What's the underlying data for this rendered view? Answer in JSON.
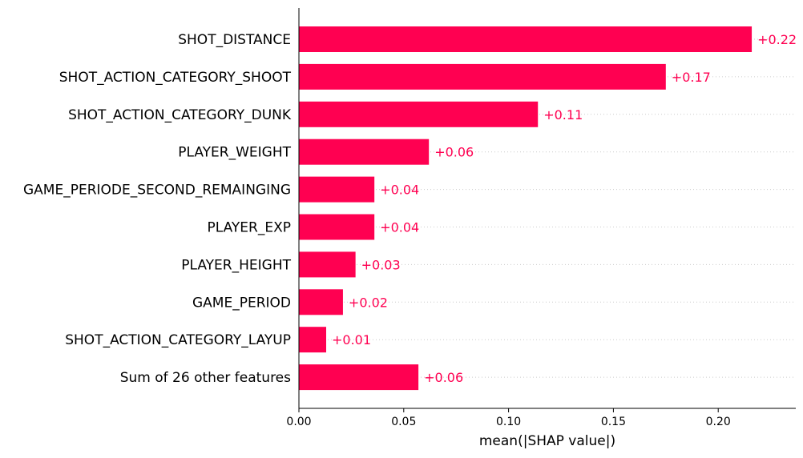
{
  "chart_data": {
    "type": "bar",
    "orientation": "horizontal",
    "categories": [
      "SHOT_DISTANCE",
      "SHOT_ACTION_CATEGORY_SHOOT",
      "SHOT_ACTION_CATEGORY_DUNK",
      "PLAYER_WEIGHT",
      "GAME_PERIODE_SECOND_REMAINGING",
      "PLAYER_EXP",
      "PLAYER_HEIGHT",
      "GAME_PERIOD",
      "SHOT_ACTION_CATEGORY_LAYUP",
      "Sum of 26 other features"
    ],
    "values": [
      0.216,
      0.175,
      0.114,
      0.062,
      0.036,
      0.036,
      0.027,
      0.021,
      0.013,
      0.057
    ],
    "value_labels": [
      "+0.22",
      "+0.17",
      "+0.11",
      "+0.06",
      "+0.04",
      "+0.04",
      "+0.03",
      "+0.02",
      "+0.01",
      "+0.06"
    ],
    "xlabel": "mean(|SHAP value|)",
    "xticks": [
      0.0,
      0.05,
      0.1,
      0.15,
      0.2
    ],
    "xtick_labels": [
      "0.00",
      "0.05",
      "0.10",
      "0.15",
      "0.20"
    ],
    "xlim": [
      0,
      0.237
    ],
    "grid": "dotted row guides",
    "colors": {
      "bar": "#ff0051",
      "value_label": "#ff0051",
      "axis": "#000000",
      "row_guide": "#cccccc"
    }
  }
}
